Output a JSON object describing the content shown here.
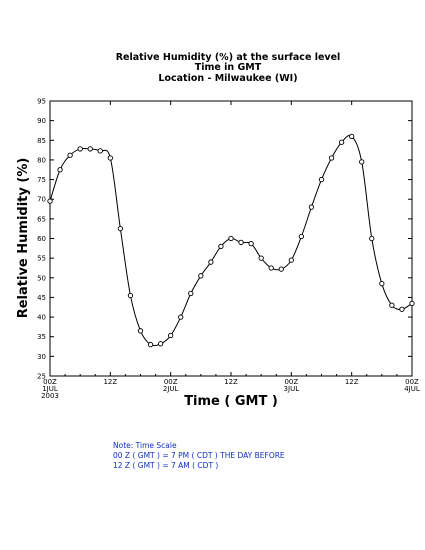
{
  "chart_data": {
    "type": "line",
    "title": [
      "Relative Humidity (%) at the surface level",
      "Time in GMT",
      "Location - Milwaukee (WI)"
    ],
    "xlabel": "Time ( GMT )",
    "ylabel": "Relative Humidity (%)",
    "ylim": [
      25,
      95
    ],
    "yticks": [
      25,
      30,
      35,
      40,
      45,
      50,
      55,
      60,
      65,
      70,
      75,
      80,
      85,
      90,
      95
    ],
    "xlim": [
      0,
      72
    ],
    "xticks": [
      {
        "x": 0,
        "lines": [
          "00Z",
          "1JUL",
          "2003"
        ]
      },
      {
        "x": 12,
        "lines": [
          "12Z"
        ]
      },
      {
        "x": 24,
        "lines": [
          "00Z",
          "2JUL"
        ]
      },
      {
        "x": 36,
        "lines": [
          "12Z"
        ]
      },
      {
        "x": 48,
        "lines": [
          "00Z",
          "3JUL"
        ]
      },
      {
        "x": 60,
        "lines": [
          "12Z"
        ]
      },
      {
        "x": 72,
        "lines": [
          "00Z",
          "4JUL"
        ]
      }
    ],
    "series": [
      {
        "x": [
          0,
          2,
          4,
          6,
          8,
          10,
          12,
          14,
          16,
          18,
          20,
          22,
          24,
          26,
          28,
          30,
          32,
          34,
          36,
          38,
          40,
          42,
          44,
          46,
          48,
          50,
          52,
          54,
          56,
          58,
          60,
          62,
          64,
          66,
          68,
          70,
          72
        ],
        "y": [
          69.5,
          77.5,
          81.2,
          82.8,
          82.8,
          82.3,
          80.5,
          62.5,
          45.5,
          36.5,
          33,
          33.2,
          35.3,
          40,
          46,
          50.5,
          54,
          58,
          60,
          59,
          58.7,
          55,
          52.5,
          52.2,
          54.5,
          60.5,
          68,
          75,
          80.5,
          84.5,
          86,
          79.5,
          60,
          48.5,
          43,
          42,
          43.5
        ]
      }
    ],
    "grid": false,
    "legend": "none"
  },
  "notes": [
    "Note: Time Scale",
    "00 Z ( GMT ) = 7 PM ( CDT ) THE DAY BEFORE",
    "12 Z ( GMT ) = 7 AM ( CDT )"
  ]
}
